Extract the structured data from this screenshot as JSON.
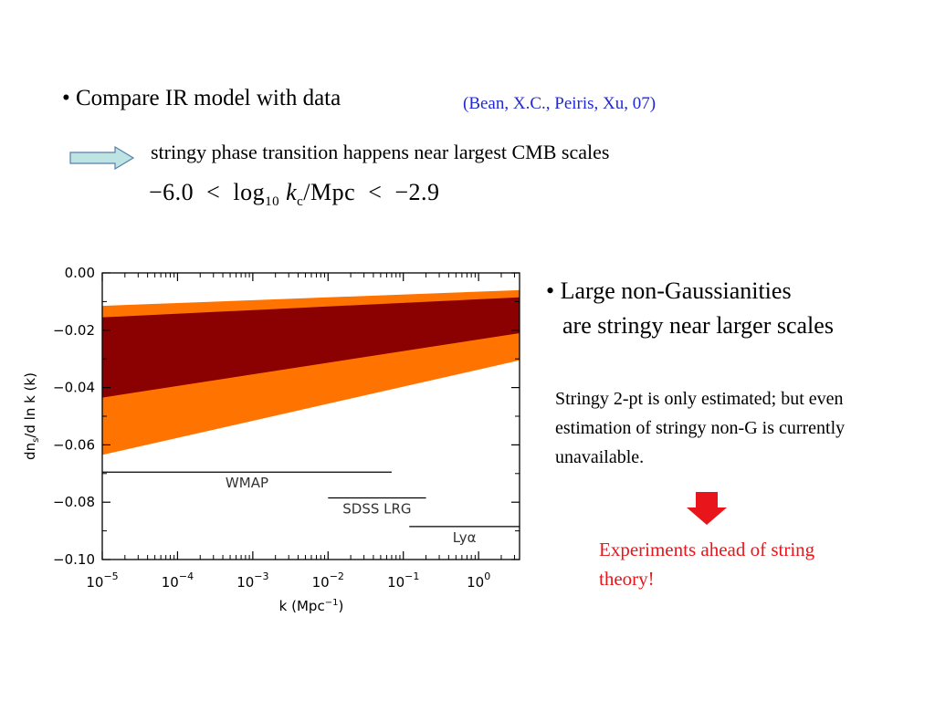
{
  "slide": {
    "bullet1": "• Compare IR model with data",
    "citation": "(Bean, X.C., Peiris, Xu, 07)",
    "subtitle": "stringy phase transition happens near largest CMB scales",
    "formula": {
      "lower": "−6.0",
      "lt": "<",
      "log": "log",
      "base": "10",
      "var": "k",
      "var_sub": "c",
      "unit": "/Mpc",
      "upper": "−2.9"
    },
    "bullet2_line1": "• Large non-Gaussianities",
    "bullet2_line2": "are stringy near larger scales",
    "paragraph": "Stringy 2-pt is only estimated; but even estimation of stringy non-G is currently unavailable.",
    "conclusion": "Experiments ahead of string theory!",
    "colors": {
      "citation": "#1f2ad6",
      "conclusion": "#e8161b",
      "arrow_fill": "#bde3e3",
      "down_arrow": "#e8161b",
      "outer_band": "#ff7300",
      "inner_band": "#8b0000"
    }
  },
  "chart_data": {
    "type": "area",
    "x_scale": "log",
    "xlim": [
      1e-05,
      3.5
    ],
    "ylim": [
      -0.1,
      0.0
    ],
    "xlabel": "k (Mpc⁻¹)",
    "ylabel": "dns/d ln k (k)",
    "x_ticks": [
      {
        "value": 1e-05,
        "base": "10",
        "exp": "−5"
      },
      {
        "value": 0.0001,
        "base": "10",
        "exp": "−4"
      },
      {
        "value": 0.001,
        "base": "10",
        "exp": "−3"
      },
      {
        "value": 0.01,
        "base": "10",
        "exp": "−2"
      },
      {
        "value": 0.1,
        "base": "10",
        "exp": "−1"
      },
      {
        "value": 1,
        "base": "10",
        "exp": "0"
      }
    ],
    "y_ticks": [
      {
        "value": 0.0,
        "label": "0.00"
      },
      {
        "value": -0.02,
        "label": "−0.02"
      },
      {
        "value": -0.04,
        "label": "−0.04"
      },
      {
        "value": -0.06,
        "label": "−0.06"
      },
      {
        "value": -0.08,
        "label": "−0.08"
      },
      {
        "value": -0.1,
        "label": "−0.10"
      }
    ],
    "bands": [
      {
        "name": "outer",
        "color": "#ff7300",
        "x": [
          1e-05,
          3.5
        ],
        "upper": [
          -0.0115,
          -0.006
        ],
        "lower": [
          -0.0635,
          -0.0305
        ]
      },
      {
        "name": "inner",
        "color": "#8b0000",
        "x": [
          1e-05,
          3.5
        ],
        "upper": [
          -0.0155,
          -0.0085
        ],
        "lower": [
          -0.0435,
          -0.021
        ]
      }
    ],
    "ranges": [
      {
        "label": "WMAP",
        "x": [
          1e-05,
          0.07
        ],
        "y": -0.0695
      },
      {
        "label": "SDSS LRG",
        "x": [
          0.01,
          0.2
        ],
        "y": -0.0785
      },
      {
        "label": "Lyα",
        "x": [
          0.12,
          3.5
        ],
        "y": -0.0885
      }
    ]
  }
}
